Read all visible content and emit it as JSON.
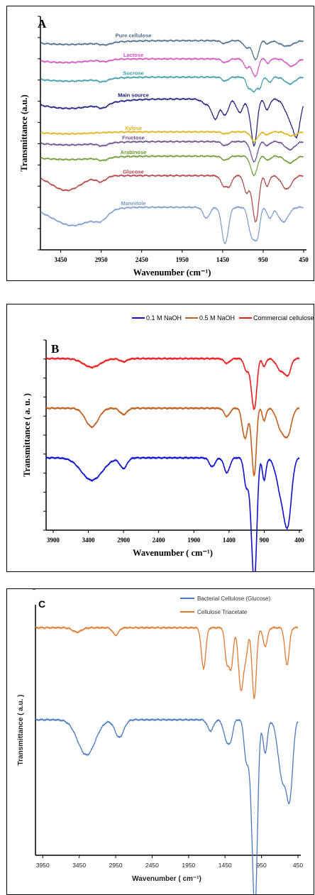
{
  "chart_data": [
    {
      "panel": "A",
      "type": "line",
      "xlabel": "Wavenumber (cm⁻¹)",
      "ylabel": "Transmittance (a.u.)",
      "xlim": [
        3700,
        450
      ],
      "x_ticks": [
        "3450",
        "2950",
        "2450",
        "1950",
        "1450",
        "950",
        "450"
      ],
      "series": [
        {
          "name": "Pure cellulose",
          "color": "#4a6a8a",
          "offset": 8.6,
          "scale": 0.45,
          "bands": [
            [
              3350,
              400,
              0.35
            ],
            [
              2900,
              70,
              0.2
            ],
            [
              1430,
              40,
              0.25
            ],
            [
              1160,
              35,
              0.6
            ],
            [
              1060,
              40,
              1.0
            ],
            [
              1030,
              30,
              0.9
            ],
            [
              895,
              25,
              0.3
            ],
            [
              660,
              80,
              0.5
            ]
          ]
        },
        {
          "name": "Lactose",
          "color": "#d050c0",
          "offset": 7.85,
          "scale": 0.5,
          "bands": [
            [
              3400,
              300,
              0.3
            ],
            [
              2900,
              60,
              0.15
            ],
            [
              1420,
              40,
              0.3
            ],
            [
              1160,
              30,
              0.7
            ],
            [
              1070,
              35,
              1.0
            ],
            [
              1030,
              25,
              0.8
            ],
            [
              890,
              20,
              0.4
            ],
            [
              600,
              60,
              0.6
            ]
          ]
        },
        {
          "name": "Sucrose",
          "color": "#3a9aaa",
          "offset": 7.1,
          "scale": 0.55,
          "bands": [
            [
              3350,
              350,
              0.3
            ],
            [
              2930,
              60,
              0.2
            ],
            [
              1420,
              35,
              0.3
            ],
            [
              1130,
              30,
              0.7
            ],
            [
              1060,
              35,
              1.0
            ],
            [
              990,
              25,
              0.7
            ],
            [
              870,
              25,
              0.4
            ],
            [
              620,
              60,
              0.5
            ]
          ]
        },
        {
          "name": "Main source",
          "color": "#1a1a7a",
          "offset": 6.2,
          "scale": 1.1,
          "bands": [
            [
              3350,
              380,
              0.35
            ],
            [
              2930,
              60,
              0.15
            ],
            [
              1640,
              60,
              0.2
            ],
            [
              1540,
              40,
              0.7
            ],
            [
              1420,
              40,
              0.6
            ],
            [
              1240,
              40,
              0.5
            ],
            [
              1080,
              40,
              1.0
            ],
            [
              1050,
              30,
              0.9
            ],
            [
              900,
              30,
              0.4
            ],
            [
              600,
              70,
              0.8
            ],
            [
              530,
              40,
              0.9
            ]
          ]
        },
        {
          "name": "Xylose",
          "color": "#e0b010",
          "offset": 4.85,
          "scale": 0.4,
          "bands": [
            [
              3350,
              300,
              0.2
            ],
            [
              1420,
              40,
              0.2
            ],
            [
              1060,
              40,
              1.0
            ],
            [
              900,
              30,
              0.3
            ],
            [
              600,
              60,
              0.4
            ]
          ]
        },
        {
          "name": "Fructose",
          "color": "#6a4a8a",
          "offset": 4.45,
          "scale": 0.55,
          "bands": [
            [
              3350,
              350,
              0.25
            ],
            [
              2930,
              60,
              0.2
            ],
            [
              1420,
              40,
              0.3
            ],
            [
              1080,
              35,
              1.0
            ],
            [
              1040,
              30,
              0.8
            ],
            [
              900,
              30,
              0.3
            ],
            [
              620,
              60,
              0.6
            ]
          ]
        },
        {
          "name": "Arabinose",
          "color": "#6a9a30",
          "offset": 3.85,
          "scale": 0.55,
          "bands": [
            [
              3350,
              350,
              0.25
            ],
            [
              2930,
              60,
              0.2
            ],
            [
              1420,
              40,
              0.3
            ],
            [
              1080,
              35,
              1.0
            ],
            [
              1040,
              30,
              0.7
            ],
            [
              890,
              30,
              0.3
            ],
            [
              620,
              60,
              0.5
            ]
          ]
        },
        {
          "name": "Glucose",
          "color": "#b04040",
          "offset": 3.05,
          "scale": 1.1,
          "bands": [
            [
              3380,
              180,
              0.55
            ],
            [
              2950,
              60,
              0.2
            ],
            [
              1430,
              40,
              0.4
            ],
            [
              1360,
              30,
              0.3
            ],
            [
              1160,
              30,
              0.6
            ],
            [
              1060,
              40,
              1.0
            ],
            [
              1030,
              30,
              0.9
            ],
            [
              900,
              25,
              0.4
            ],
            [
              660,
              60,
              0.5
            ]
          ]
        },
        {
          "name": "Mannitole",
          "color": "#7a9ac8",
          "offset": 1.75,
          "scale": 1.5,
          "bands": [
            [
              3300,
              250,
              0.5
            ],
            [
              2950,
              80,
              0.2
            ],
            [
              1650,
              40,
              0.3
            ],
            [
              1420,
              40,
              1.0
            ],
            [
              1090,
              40,
              0.8
            ],
            [
              1020,
              30,
              0.7
            ],
            [
              870,
              30,
              0.3
            ],
            [
              700,
              60,
              0.4
            ]
          ]
        }
      ]
    },
    {
      "panel": "B",
      "type": "line",
      "xlabel": "Wavenumber ( cm⁻¹)",
      "ylabel": "Transmittance ( a. u. )",
      "xlim": [
        4000,
        400
      ],
      "x_ticks": [
        "3900",
        "3400",
        "2900",
        "2400",
        "1900",
        "1400",
        "900",
        "400"
      ],
      "legend_position": "top-right",
      "series": [
        {
          "name": "0.1 M NaOH",
          "color": "#1010d0",
          "offset": 3.5,
          "scale": 3.6,
          "bands": [
            [
              3350,
              150,
              0.3
            ],
            [
              2900,
              50,
              0.14
            ],
            [
              1640,
              40,
              0.12
            ],
            [
              1430,
              40,
              0.2
            ],
            [
              1160,
              30,
              0.35
            ],
            [
              1060,
              40,
              1.0
            ],
            [
              1030,
              30,
              0.85
            ],
            [
              900,
              25,
              0.3
            ],
            [
              650,
              70,
              0.5
            ],
            [
              560,
              50,
              0.7
            ]
          ]
        },
        {
          "name": "0.5 M NaOH",
          "color": "#c06020",
          "offset": 5.9,
          "scale": 2.0,
          "bands": [
            [
              3350,
              90,
              0.45
            ],
            [
              2900,
              50,
              0.15
            ],
            [
              1430,
              40,
              0.2
            ],
            [
              1200,
              30,
              0.35
            ],
            [
              1160,
              30,
              0.55
            ],
            [
              1060,
              30,
              1.0
            ],
            [
              1030,
              25,
              0.9
            ],
            [
              900,
              25,
              0.3
            ],
            [
              660,
              60,
              0.5
            ],
            [
              560,
              50,
              0.55
            ]
          ]
        },
        {
          "name": "Commercial cellulose",
          "color": "#ee1c1c",
          "offset": 8.3,
          "scale": 1.5,
          "bands": [
            [
              3350,
              120,
              0.28
            ],
            [
              2900,
              50,
              0.1
            ],
            [
              1430,
              40,
              0.15
            ],
            [
              1160,
              30,
              0.35
            ],
            [
              1060,
              40,
              1.0
            ],
            [
              1030,
              30,
              0.8
            ],
            [
              900,
              25,
              0.25
            ],
            [
              660,
              60,
              0.4
            ],
            [
              560,
              40,
              0.45
            ]
          ]
        }
      ]
    },
    {
      "panel": "C",
      "type": "line",
      "xlabel": "Wavenumber ( cm⁻¹)",
      "ylabel": "Transmittance ( a.u. )",
      "xlim": [
        4050,
        450
      ],
      "x_ticks": [
        "3950",
        "3450",
        "2950",
        "2450",
        "1950",
        "1450",
        "950",
        "450"
      ],
      "legend_position": "top-right",
      "series": [
        {
          "name": "Bacterial Cellulose (Glucose)",
          "color": "#4a7ac0",
          "offset": 5.3,
          "scale": 4.3,
          "bands": [
            [
              3350,
              120,
              0.32
            ],
            [
              2900,
              60,
              0.16
            ],
            [
              1650,
              40,
              0.1
            ],
            [
              1430,
              40,
              0.18
            ],
            [
              1370,
              30,
              0.14
            ],
            [
              1160,
              30,
              0.35
            ],
            [
              1060,
              40,
              1.0
            ],
            [
              1030,
              30,
              0.9
            ],
            [
              900,
              30,
              0.3
            ],
            [
              660,
              60,
              0.55
            ],
            [
              560,
              40,
              0.6
            ]
          ]
        },
        {
          "name": "Cellulose Triacetate",
          "color": "#e07a30",
          "offset": 8.9,
          "scale": 2.9,
          "bands": [
            [
              3480,
              60,
              0.06
            ],
            [
              2950,
              40,
              0.1
            ],
            [
              1745,
              30,
              0.55
            ],
            [
              1430,
              25,
              0.4
            ],
            [
              1370,
              30,
              0.55
            ],
            [
              1230,
              35,
              0.85
            ],
            [
              1160,
              25,
              0.3
            ],
            [
              1050,
              30,
              0.95
            ],
            [
              900,
              30,
              0.25
            ],
            [
              600,
              30,
              0.5
            ]
          ]
        }
      ]
    }
  ],
  "labels": {
    "panelA": "A",
    "panelB": "B",
    "panelC": "C",
    "sampleA": [
      "Pure  cellulose",
      "Lactose",
      "Sucrose",
      "Main source",
      "Xylose",
      "Fructose",
      "Arabinose",
      "Glucose",
      "Mannitole"
    ],
    "legendB": [
      "0.1 M NaOH",
      "0.5 M NaOH",
      "Commercial cellulose"
    ],
    "legendC": [
      "Bacterial Cellulose (Glucose)",
      "Cellulose Triacetate"
    ]
  }
}
